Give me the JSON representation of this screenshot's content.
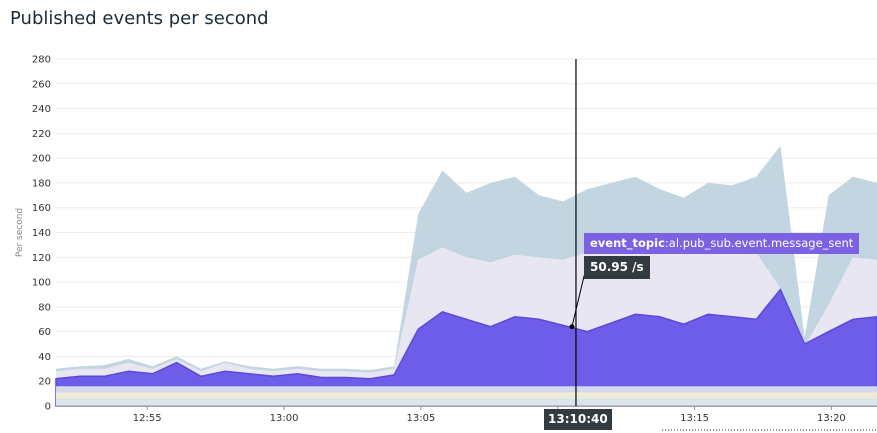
{
  "page_title": "Published events per second",
  "colors": {
    "outer": "#b9cedb",
    "middle": "#e9e6f4",
    "highlight": "#6e5de8",
    "highlight_line": "#5b49d8"
  },
  "chart_data": {
    "type": "area",
    "title": "Published events per second",
    "ylabel": "Per second",
    "xlabel": "",
    "ylim": [
      0,
      280
    ],
    "yticks": [
      "0",
      "20",
      "40",
      "60",
      "80",
      "100",
      "120",
      "140",
      "160",
      "180",
      "200",
      "220",
      "240",
      "260",
      "280"
    ],
    "xticks": [
      "12:55",
      "13:00",
      "13:05",
      "13:10",
      "13:15",
      "13:20"
    ],
    "x_range": [
      "12:51:40",
      "13:21:40"
    ],
    "grid": true,
    "stacked": true,
    "series": [
      {
        "name": "event_topic:al.pub_sub.event.message_sent",
        "values_sample": [
          22,
          24,
          24,
          28,
          26,
          35,
          24,
          28,
          26,
          24,
          26,
          23,
          23,
          22,
          25,
          62,
          76,
          70,
          64,
          72,
          70,
          65,
          60,
          67,
          74,
          72,
          66,
          74,
          72,
          70,
          94,
          50,
          60,
          70,
          72
        ]
      },
      {
        "name": "",
        "values_sample": [
          28,
          30,
          30,
          35,
          30,
          38,
          28,
          35,
          30,
          28,
          30,
          28,
          28,
          27,
          30,
          118,
          128,
          120,
          116,
          122,
          120,
          118,
          124,
          126,
          124,
          128,
          126,
          128,
          128,
          124,
          95,
          48,
          82,
          120,
          118
        ]
      },
      {
        "name": "",
        "values_sample": [
          30,
          32,
          33,
          38,
          32,
          40,
          30,
          36,
          32,
          30,
          32,
          30,
          30,
          29,
          32,
          155,
          190,
          172,
          180,
          185,
          170,
          165,
          175,
          180,
          185,
          175,
          168,
          180,
          178,
          185,
          210,
          55,
          170,
          185,
          180
        ]
      }
    ],
    "hover": {
      "time": "13:10:40",
      "series": "event_topic:al.pub_sub.event.message_sent",
      "series_key": "event_topic",
      "series_value": ":al.pub_sub.event.message_sent",
      "value": "50.95 /s",
      "value_num": 50.95
    }
  }
}
